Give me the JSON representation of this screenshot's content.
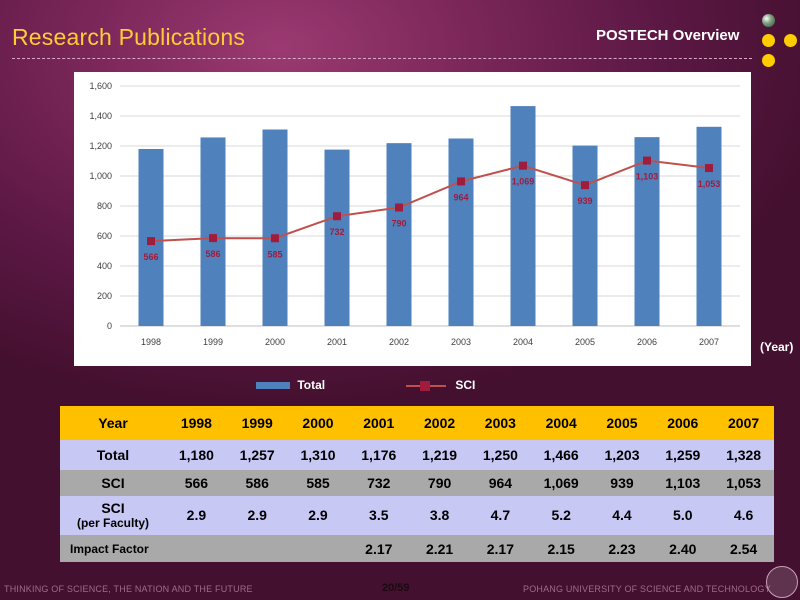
{
  "header": {
    "title": "Research Publications",
    "brand": "POSTECH Overview"
  },
  "footer": {
    "left": "THINKING OF SCIENCE, THE NATION AND THE FUTURE",
    "page": "20/59",
    "right": "POHANG UNIVERSITY OF SCIENCE AND TECHNOLOGY"
  },
  "colors": {
    "title": "#ffcc33",
    "bar": "#4f81bd",
    "line": "#c0504d",
    "marker": "#a01c3c",
    "header_row": "#ffc000",
    "lavender_row": "#c8c8f5",
    "gray_row": "#a9a9a9"
  },
  "chart_data": {
    "type": "bar",
    "categories": [
      "1998",
      "1999",
      "2000",
      "2001",
      "2002",
      "2003",
      "2004",
      "2005",
      "2006",
      "2007"
    ],
    "series": [
      {
        "name": "Total",
        "type": "bar",
        "values": [
          1180,
          1257,
          1310,
          1176,
          1219,
          1250,
          1466,
          1203,
          1259,
          1328
        ]
      },
      {
        "name": "SCI",
        "type": "line",
        "values": [
          566,
          586,
          585,
          732,
          790,
          964,
          1069,
          939,
          1103,
          1053
        ],
        "labels": [
          "566",
          "586",
          "585",
          "732",
          "790",
          "964",
          "1,069",
          "939",
          "1,103",
          "1,053"
        ]
      }
    ],
    "yticks": [
      "0",
      "200",
      "400",
      "600",
      "800",
      "1,000",
      "1,200",
      "1,400",
      "1,600"
    ],
    "ylim": [
      0,
      1600
    ],
    "xlabel": "(Year)",
    "grid": true,
    "legend": "bottom"
  },
  "table": {
    "header_label": "Year",
    "years": [
      "1998",
      "1999",
      "2000",
      "2001",
      "2002",
      "2003",
      "2004",
      "2005",
      "2006",
      "2007"
    ],
    "rows": [
      {
        "label": "Total",
        "values": [
          "1,180",
          "1,257",
          "1,310",
          "1,176",
          "1,219",
          "1,250",
          "1,466",
          "1,203",
          "1,259",
          "1,328"
        ]
      },
      {
        "label": "SCI",
        "values": [
          "566",
          "586",
          "585",
          "732",
          "790",
          "964",
          "1,069",
          "939",
          "1,103",
          "1,053"
        ]
      },
      {
        "label": "SCI",
        "sublabel": "(per Faculty)",
        "values": [
          "2.9",
          "2.9",
          "2.9",
          "3.5",
          "3.8",
          "4.7",
          "5.2",
          "4.4",
          "5.0",
          "4.6"
        ]
      },
      {
        "label": "Impact Factor",
        "values": [
          "",
          "",
          "",
          "2.17",
          "2.21",
          "2.17",
          "2.15",
          "2.23",
          "2.40",
          "2.54"
        ]
      }
    ]
  }
}
